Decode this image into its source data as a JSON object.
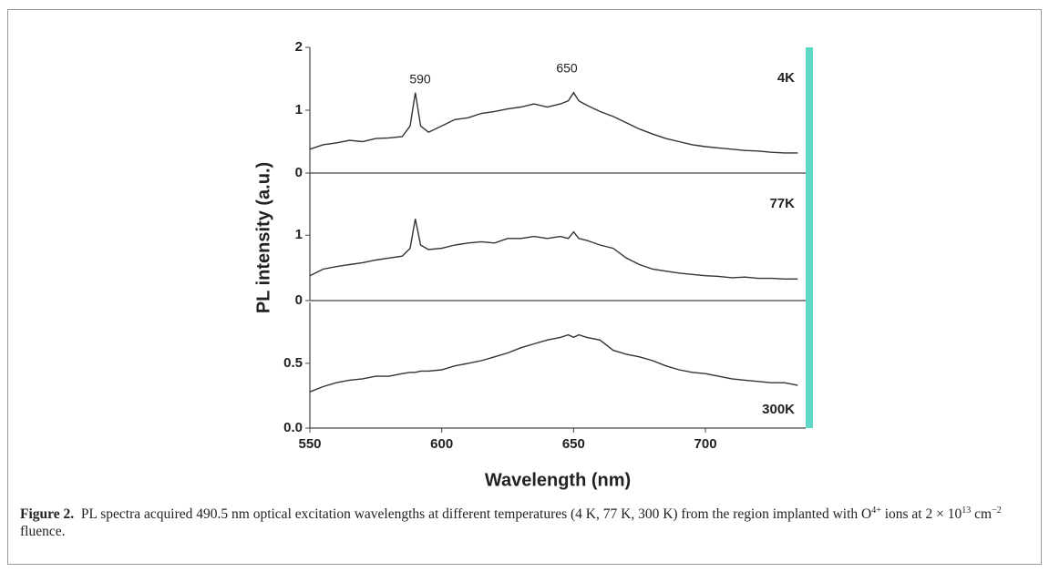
{
  "chart_data": [
    {
      "type": "line",
      "label": "4K",
      "annotations": [
        "590",
        "650"
      ],
      "x": [
        550,
        555,
        560,
        565,
        570,
        575,
        580,
        585,
        588,
        590,
        592,
        595,
        600,
        605,
        610,
        615,
        620,
        625,
        630,
        635,
        640,
        645,
        648,
        650,
        652,
        655,
        660,
        665,
        670,
        675,
        680,
        685,
        690,
        695,
        700,
        705,
        710,
        715,
        720,
        725,
        730,
        735
      ],
      "series": [
        {
          "color": "#333333",
          "values": [
            0.38,
            0.45,
            0.48,
            0.52,
            0.5,
            0.55,
            0.56,
            0.58,
            0.75,
            1.28,
            0.75,
            0.65,
            0.75,
            0.85,
            0.88,
            0.95,
            0.98,
            1.02,
            1.05,
            1.1,
            1.05,
            1.1,
            1.15,
            1.28,
            1.15,
            1.08,
            0.98,
            0.9,
            0.8,
            0.7,
            0.62,
            0.55,
            0.5,
            0.45,
            0.42,
            0.4,
            0.38,
            0.36,
            0.35,
            0.33,
            0.32,
            0.32
          ]
        }
      ],
      "xlim": [
        550,
        738
      ],
      "ylim": [
        0,
        2
      ],
      "yticks": [
        0,
        1,
        2
      ]
    },
    {
      "type": "line",
      "label": "77K",
      "ylabel": "PL intensity (a.u.)",
      "x": [
        550,
        555,
        560,
        565,
        570,
        575,
        580,
        585,
        588,
        590,
        592,
        595,
        600,
        605,
        610,
        615,
        620,
        625,
        630,
        635,
        640,
        645,
        648,
        650,
        652,
        655,
        660,
        665,
        670,
        675,
        680,
        685,
        690,
        695,
        700,
        705,
        710,
        715,
        720,
        725,
        730,
        735
      ],
      "series": [
        {
          "color": "#333333",
          "values": [
            0.38,
            0.48,
            0.52,
            0.55,
            0.58,
            0.62,
            0.65,
            0.68,
            0.8,
            1.25,
            0.85,
            0.78,
            0.8,
            0.85,
            0.88,
            0.9,
            0.88,
            0.95,
            0.95,
            0.98,
            0.95,
            0.98,
            0.95,
            1.05,
            0.95,
            0.92,
            0.85,
            0.8,
            0.65,
            0.55,
            0.48,
            0.45,
            0.42,
            0.4,
            0.38,
            0.37,
            0.35,
            0.36,
            0.34,
            0.34,
            0.33,
            0.33
          ]
        }
      ],
      "xlim": [
        550,
        738
      ],
      "ylim": [
        0,
        1.95
      ],
      "yticks": [
        0,
        1
      ]
    },
    {
      "type": "line",
      "label": "300K",
      "xlabel": "Wavelength (nm)",
      "x": [
        550,
        555,
        560,
        565,
        570,
        575,
        580,
        585,
        588,
        590,
        592,
        595,
        600,
        605,
        610,
        615,
        620,
        625,
        630,
        635,
        640,
        645,
        648,
        650,
        652,
        655,
        660,
        665,
        670,
        675,
        680,
        685,
        690,
        695,
        700,
        705,
        710,
        715,
        720,
        725,
        730,
        735
      ],
      "series": [
        {
          "color": "#333333",
          "values": [
            0.28,
            0.32,
            0.35,
            0.37,
            0.38,
            0.4,
            0.4,
            0.42,
            0.43,
            0.43,
            0.44,
            0.44,
            0.45,
            0.48,
            0.5,
            0.52,
            0.55,
            0.58,
            0.62,
            0.65,
            0.68,
            0.7,
            0.72,
            0.7,
            0.72,
            0.7,
            0.68,
            0.6,
            0.57,
            0.55,
            0.52,
            0.48,
            0.45,
            0.43,
            0.42,
            0.4,
            0.38,
            0.37,
            0.36,
            0.35,
            0.35,
            0.33
          ]
        }
      ],
      "xlim": [
        550,
        738
      ],
      "ylim": [
        0,
        0.97
      ],
      "xticks": [
        550,
        600,
        650,
        700
      ],
      "yticks": [
        {
          "value": 0,
          "label": "0.0"
        },
        {
          "value": 0.5,
          "label": "0.5"
        }
      ]
    }
  ],
  "caption": {
    "label": "Figure 2.",
    "segments": [
      "PL spectra acquired 490.5 nm optical excitation wavelengths at different temperatures (4 K, 77 K, 300 K) from the region implanted with O",
      "4+",
      " ions at 2 × 10",
      "13",
      " cm",
      "−2",
      " fluence."
    ]
  }
}
